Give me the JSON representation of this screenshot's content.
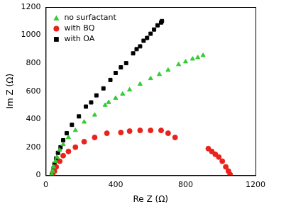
{
  "chart_data": {
    "type": "scatter",
    "x_label": "Re Z (Ω)",
    "y_label": "Im Z (Ω)",
    "xlim": [
      0,
      1200
    ],
    "xticks": [
      0,
      400,
      800,
      1200
    ],
    "ylim": [
      0,
      1200
    ],
    "yticks": [
      0,
      200,
      400,
      600,
      800,
      1000,
      1200
    ],
    "grid": false,
    "legend": "upper left",
    "series": [
      {
        "name": "no surfactant",
        "color": "#33cc33",
        "marker": "triangle",
        "x": [
          35,
          40,
          45,
          55,
          65,
          80,
          100,
          130,
          170,
          220,
          280,
          340,
          360,
          400,
          440,
          480,
          540,
          600,
          650,
          700,
          760,
          800,
          840,
          870,
          900
        ],
        "values": [
          5,
          30,
          60,
          100,
          130,
          180,
          220,
          270,
          320,
          380,
          430,
          500,
          520,
          550,
          580,
          610,
          650,
          690,
          720,
          750,
          790,
          810,
          830,
          840,
          855
        ]
      },
      {
        "name": "with BQ",
        "color": "#e8231c",
        "marker": "circle",
        "x": [
          40,
          50,
          60,
          80,
          100,
          130,
          170,
          220,
          280,
          350,
          430,
          480,
          540,
          600,
          660,
          700,
          740,
          930,
          950,
          970,
          990,
          1010,
          1030,
          1045,
          1055
        ],
        "values": [
          5,
          30,
          60,
          100,
          140,
          170,
          200,
          240,
          270,
          300,
          305,
          315,
          320,
          320,
          320,
          300,
          270,
          190,
          170,
          150,
          130,
          100,
          60,
          30,
          5
        ]
      },
      {
        "name": "with OA",
        "color": "#000000",
        "marker": "square",
        "x": [
          35,
          40,
          45,
          50,
          60,
          70,
          85,
          100,
          120,
          150,
          190,
          230,
          260,
          290,
          330,
          370,
          400,
          430,
          460,
          500,
          520,
          540,
          560,
          580,
          600,
          620,
          640,
          660,
          665
        ],
        "values": [
          5,
          20,
          50,
          80,
          120,
          160,
          200,
          250,
          300,
          360,
          420,
          490,
          520,
          570,
          620,
          680,
          730,
          770,
          800,
          870,
          900,
          920,
          960,
          980,
          1010,
          1040,
          1070,
          1090,
          1100
        ]
      }
    ]
  }
}
